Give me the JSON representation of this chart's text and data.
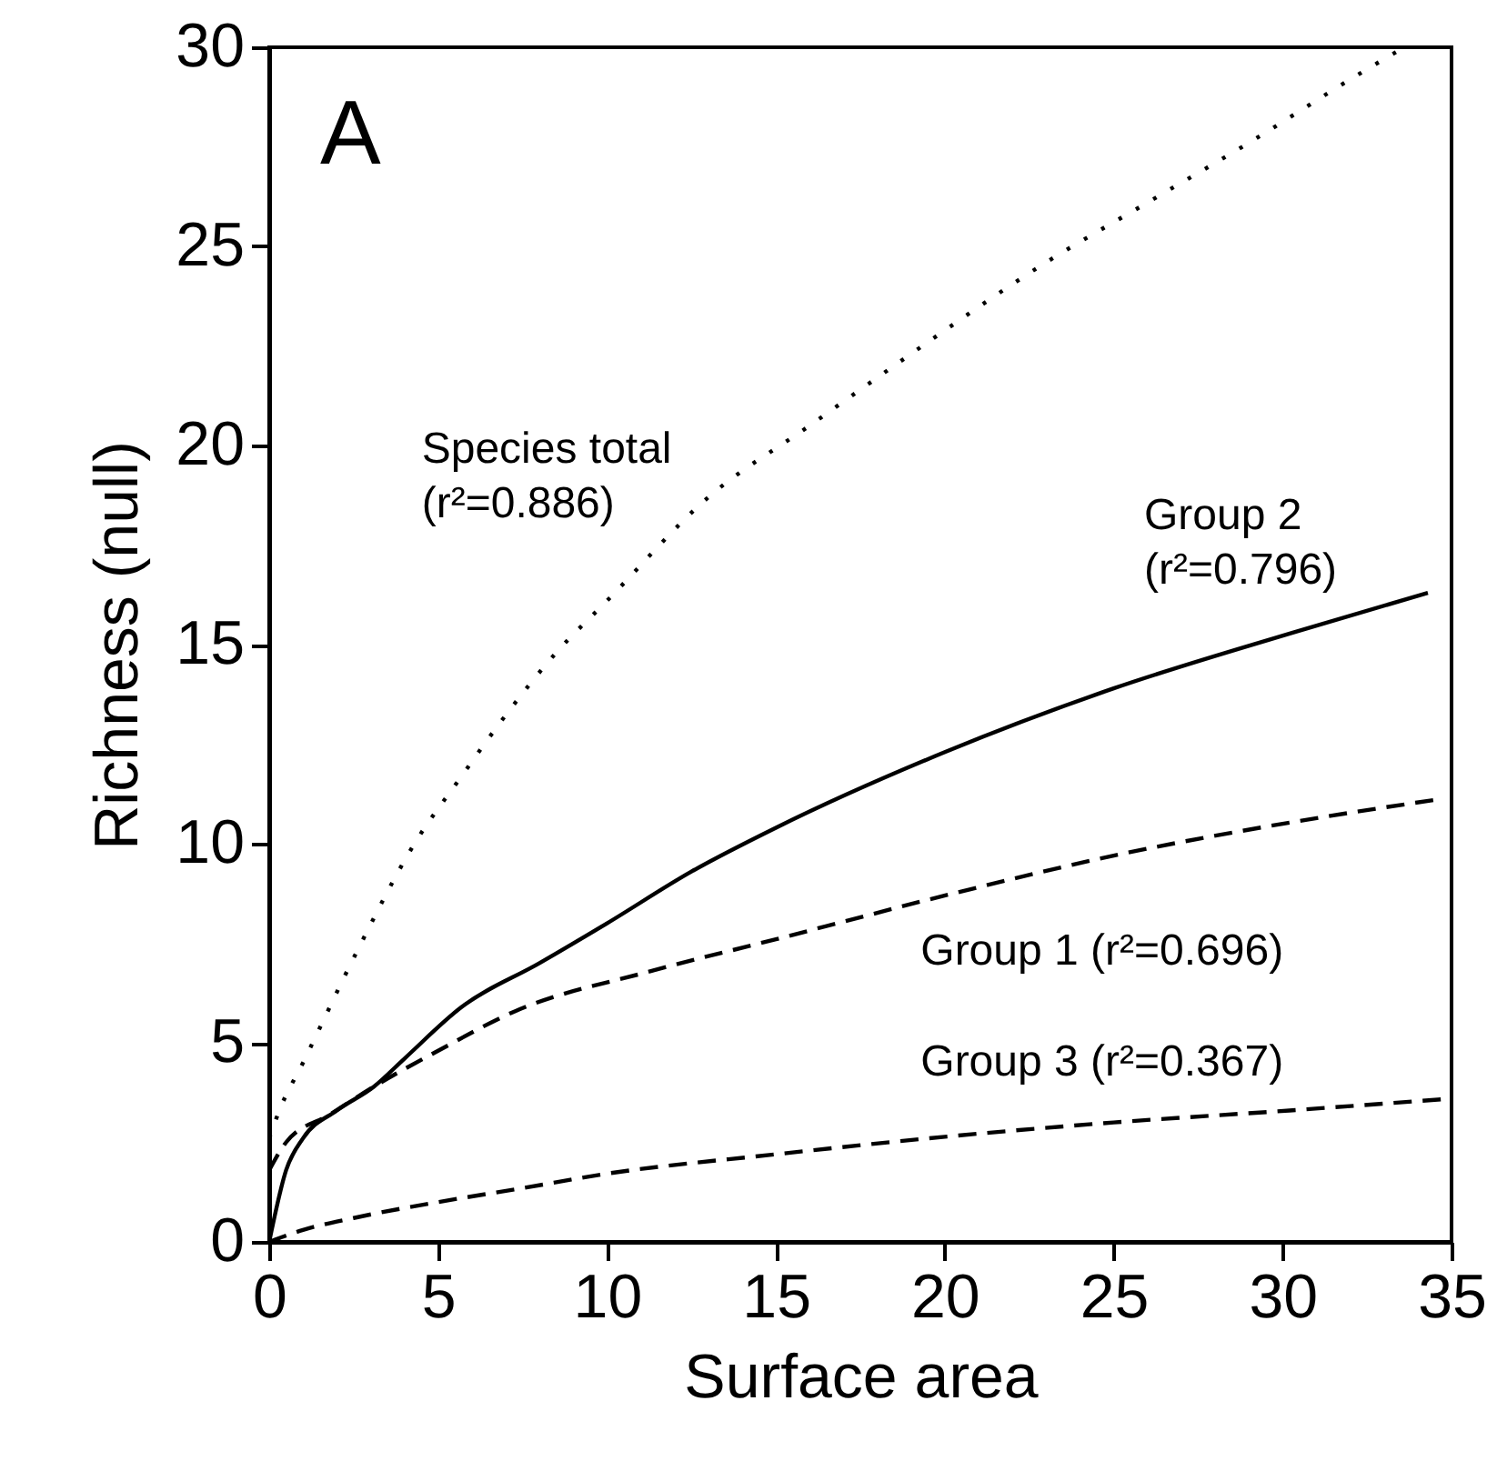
{
  "chart_data": {
    "type": "line",
    "xlabel": "Surface area",
    "ylabel": "Richness (null)",
    "xlim": [
      0,
      35
    ],
    "ylim": [
      0,
      30
    ],
    "xticks": [
      0,
      5,
      10,
      15,
      20,
      25,
      30,
      35
    ],
    "yticks": [
      0,
      5,
      10,
      15,
      20,
      25,
      30
    ],
    "grid": false,
    "marker": "none",
    "series": [
      {
        "name": "Species total\n(r²=0.886)",
        "color": "#000000",
        "line_style": "dotted",
        "x": [
          0,
          0.3,
          1,
          2.6,
          4.3,
          5.7,
          6.8,
          8.5,
          10,
          13,
          16,
          19,
          23,
          26,
          29,
          32.4,
          33.6
        ],
        "values": [
          2.6,
          3.3,
          4.5,
          7.3,
          10,
          11.7,
          13,
          14.8,
          16.1,
          18.7,
          20.5,
          22.3,
          24.6,
          26.1,
          27.6,
          29.4,
          30
        ]
      },
      {
        "name": "Group 2\n(r²=0.796)",
        "color": "#000000",
        "line_style": "solid",
        "x": [
          0,
          0.5,
          1,
          2,
          3.1,
          4,
          5.7,
          8,
          10,
          12.5,
          15,
          20,
          25,
          30.3,
          34.3
        ],
        "values": [
          0,
          1.8,
          2.6,
          3.3,
          3.9,
          4.6,
          5.9,
          7.0,
          8.0,
          9.3,
          10.4,
          12.3,
          13.9,
          15.3,
          16.3
        ]
      },
      {
        "name": "Group 1 (r²=0.696)",
        "color": "#000000",
        "line_style": "dashed",
        "x": [
          0,
          0.5,
          1.8,
          3.1,
          5,
          7.3,
          11.3,
          15,
          20.2,
          25,
          30,
          34.5
        ],
        "values": [
          1.8,
          2.5,
          3.2,
          3.9,
          4.8,
          5.8,
          6.8,
          7.6,
          8.74,
          9.7,
          10.5,
          11.1
        ]
      },
      {
        "name": "Group 3 (r²=0.367)",
        "color": "#000000",
        "line_style": "dashed",
        "x": [
          0,
          1,
          2.5,
          5,
          7.5,
          9.9,
          15,
          20,
          25,
          30.2,
          35
        ],
        "values": [
          0,
          0.3,
          0.6,
          1.0,
          1.35,
          1.7,
          2.2,
          2.64,
          3.0,
          3.3,
          3.6
        ]
      }
    ],
    "annotations": [
      "A"
    ]
  }
}
